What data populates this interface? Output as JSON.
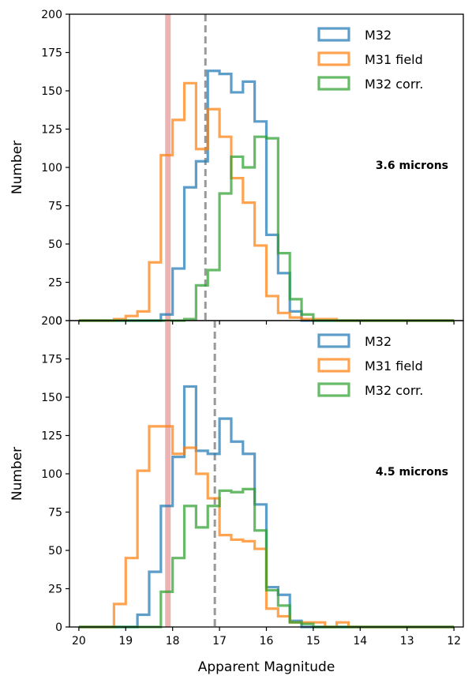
{
  "chart_data": [
    {
      "type": "histogram",
      "annotation": "3.6 microns",
      "ylabel": "Number",
      "xlabel": "",
      "xlim": [
        20.2,
        11.8
      ],
      "ylim": [
        0,
        200
      ],
      "x_inverted": true,
      "y_ticks": [
        0,
        25,
        50,
        75,
        100,
        125,
        150,
        175,
        200
      ],
      "x_ticks": [
        20,
        19,
        18,
        17,
        16,
        15,
        14,
        13,
        12
      ],
      "bin_edges": [
        20.0,
        19.75,
        19.5,
        19.25,
        19.0,
        18.75,
        18.5,
        18.25,
        18.0,
        17.75,
        17.5,
        17.25,
        17.0,
        16.75,
        16.5,
        16.25,
        16.0,
        15.75,
        15.5,
        15.25,
        15.0,
        14.75,
        14.5,
        14.25,
        14.0,
        13.75,
        13.5,
        13.25,
        13.0,
        12.75,
        12.5,
        12.25,
        12.0
      ],
      "series": [
        {
          "name": "M32",
          "color": "#1f77b4",
          "values": [
            0,
            0,
            0,
            0,
            0,
            0,
            0,
            4,
            34,
            87,
            104,
            163,
            161,
            149,
            156,
            130,
            56,
            31,
            6,
            0,
            0,
            0,
            0,
            0,
            0,
            0,
            0,
            0,
            0,
            0,
            0,
            0
          ]
        },
        {
          "name": "M31 field",
          "color": "#ff7f0e",
          "values": [
            0,
            0,
            0,
            1,
            3,
            6,
            38,
            108,
            131,
            155,
            112,
            138,
            120,
            93,
            77,
            49,
            16,
            5,
            2,
            1,
            1,
            1,
            0,
            0,
            0,
            0,
            0,
            0,
            0,
            0,
            0,
            0
          ]
        },
        {
          "name": "M32 corr.",
          "color": "#2ca02c",
          "values": [
            0,
            0,
            0,
            0,
            0,
            0,
            0,
            0,
            0,
            1,
            23,
            33,
            83,
            107,
            100,
            120,
            119,
            44,
            14,
            4,
            0,
            0,
            0,
            0,
            0,
            0,
            0,
            0,
            0,
            0,
            0,
            0
          ]
        }
      ],
      "vlines": [
        {
          "x": 18.1,
          "color": "#e8a0a0",
          "style": "solid",
          "opacity": 0.8
        },
        {
          "x": 17.3,
          "color": "#999999",
          "style": "dashed"
        }
      ],
      "legend_position": "top-right"
    },
    {
      "type": "histogram",
      "annotation": "4.5 microns",
      "ylabel": "Number",
      "xlabel": "Apparent Magnitude",
      "xlim": [
        20.2,
        11.8
      ],
      "ylim": [
        0,
        200
      ],
      "x_inverted": true,
      "y_ticks": [
        0,
        25,
        50,
        75,
        100,
        125,
        150,
        175,
        200
      ],
      "x_ticks": [
        20,
        19,
        18,
        17,
        16,
        15,
        14,
        13,
        12
      ],
      "bin_edges": [
        20.0,
        19.75,
        19.5,
        19.25,
        19.0,
        18.75,
        18.5,
        18.25,
        18.0,
        17.75,
        17.5,
        17.25,
        17.0,
        16.75,
        16.5,
        16.25,
        16.0,
        15.75,
        15.5,
        15.25,
        15.0,
        14.75,
        14.5,
        14.25,
        14.0,
        13.75,
        13.5,
        13.25,
        13.0,
        12.75,
        12.5,
        12.25,
        12.0
      ],
      "series": [
        {
          "name": "M32",
          "color": "#1f77b4",
          "values": [
            0,
            0,
            0,
            0,
            0,
            8,
            36,
            79,
            111,
            157,
            115,
            113,
            136,
            121,
            113,
            80,
            26,
            21,
            4,
            0,
            0,
            0,
            0,
            0,
            0,
            0,
            0,
            0,
            0,
            0,
            0,
            0
          ]
        },
        {
          "name": "M31 field",
          "color": "#ff7f0e",
          "values": [
            0,
            0,
            0,
            15,
            45,
            102,
            131,
            131,
            113,
            117,
            100,
            84,
            60,
            57,
            56,
            51,
            12,
            7,
            3,
            3,
            3,
            0,
            3,
            0,
            0,
            0,
            0,
            0,
            0,
            0,
            0,
            0
          ]
        },
        {
          "name": "M32 corr.",
          "color": "#2ca02c",
          "values": [
            0,
            0,
            0,
            0,
            0,
            0,
            0,
            23,
            45,
            79,
            65,
            79,
            89,
            88,
            90,
            63,
            24,
            14,
            3,
            2,
            0,
            0,
            0,
            0,
            0,
            0,
            0,
            0,
            0,
            0,
            0,
            0
          ]
        }
      ],
      "vlines": [
        {
          "x": 18.1,
          "color": "#e8a0a0",
          "style": "solid",
          "opacity": 0.8
        },
        {
          "x": 17.1,
          "color": "#999999",
          "style": "dashed"
        }
      ],
      "legend_position": "top-right"
    }
  ]
}
